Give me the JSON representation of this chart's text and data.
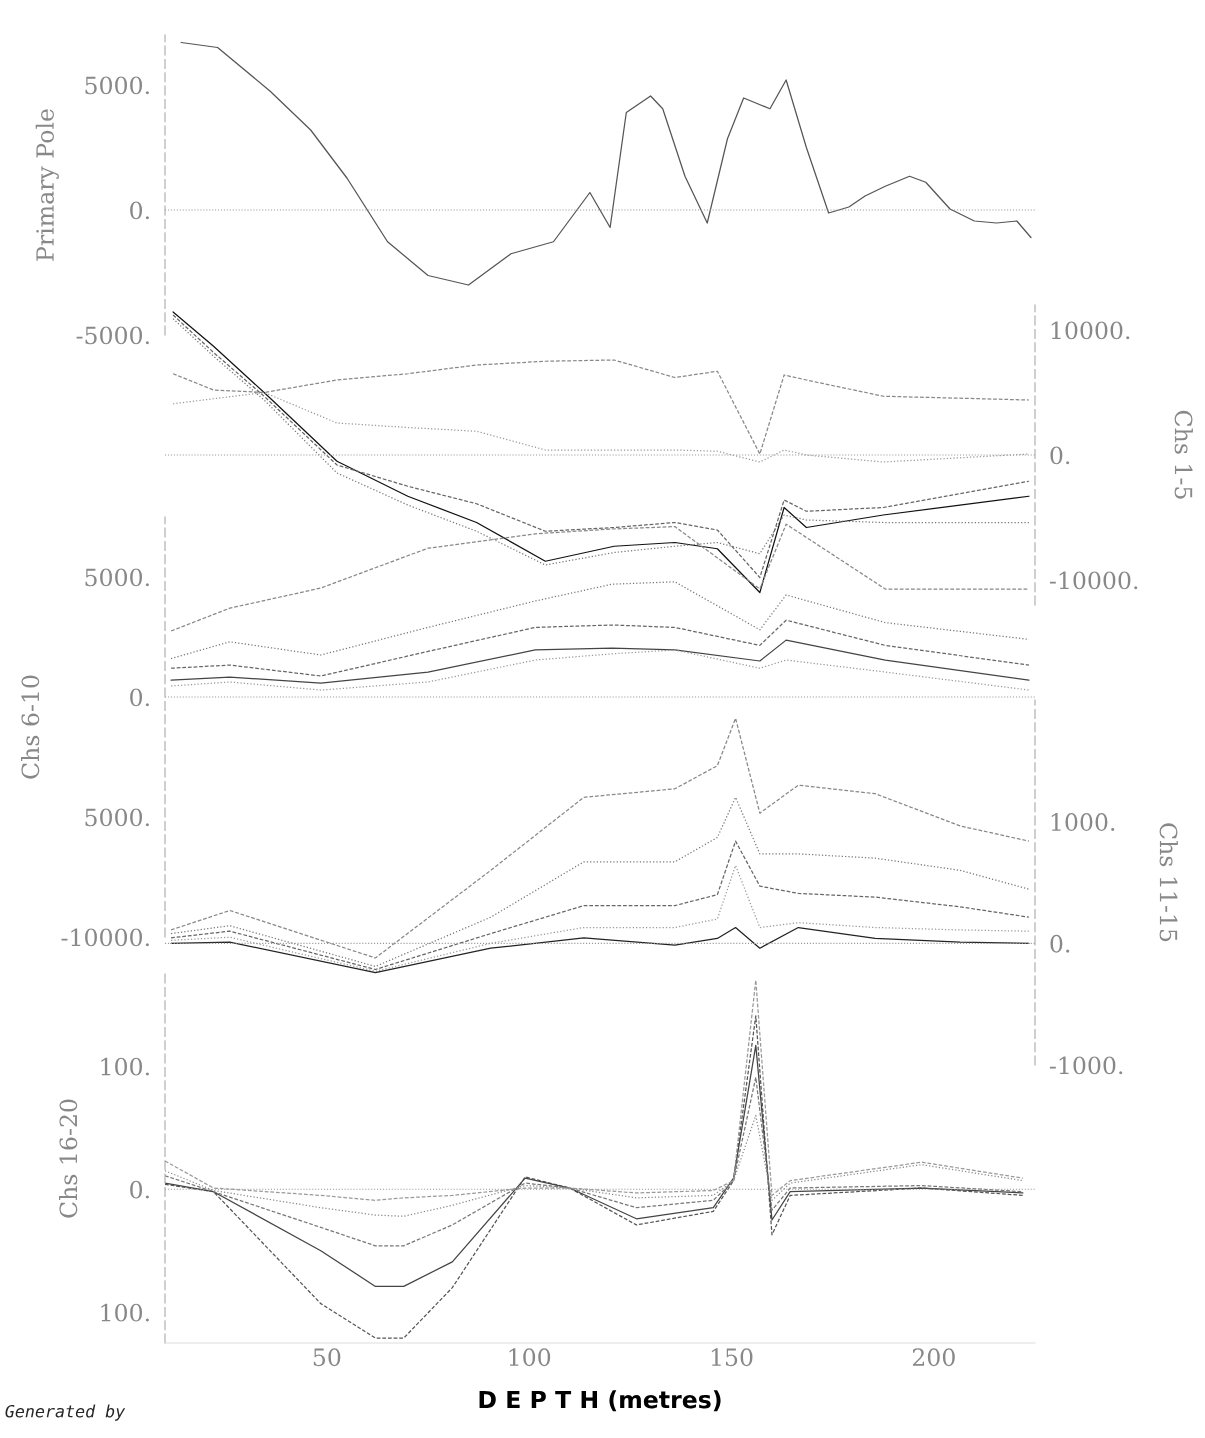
{
  "chart_data": [
    {
      "type": "line",
      "ylabel": "Primary Pole",
      "xlim": [
        10,
        225
      ],
      "ylim": [
        -5000,
        7000
      ],
      "yticks": [
        {
          "value": 5000,
          "label": "5000."
        },
        {
          "value": 0,
          "label": "0."
        },
        {
          "value": -5000,
          "label": "-5000."
        }
      ],
      "tick_labels": "y",
      "grid": false,
      "ref_lines": [
        {
          "axis": "y",
          "value": 0,
          "color": "#999999",
          "line_style": "dotted"
        }
      ],
      "x": [
        14,
        23,
        36,
        46,
        55,
        65,
        75,
        85,
        95.5,
        106,
        115,
        120,
        124,
        130,
        133,
        138.5,
        144,
        149,
        153,
        159.5,
        163.5,
        168.5,
        174,
        179,
        183,
        188,
        194,
        198,
        204,
        210,
        215.5,
        220.5,
        224
      ],
      "series": [
        {
          "color": "#555555",
          "line_style": "solid",
          "values": [
            6700,
            6500,
            4750,
            3200,
            1270,
            -1270,
            -2620,
            -3000,
            -1750,
            -1270,
            700,
            -700,
            3900,
            4560,
            4050,
            1350,
            -520,
            2850,
            4480,
            4050,
            5200,
            2500,
            -120,
            120,
            560,
            950,
            1350,
            1110,
            40,
            -440,
            -520,
            -440,
            -1100
          ]
        }
      ]
    },
    {
      "type": "line",
      "y2label": "Chs 1-5",
      "xlim": [
        10,
        225
      ],
      "y2lim": [
        -12000,
        12000
      ],
      "y2ticks": [
        {
          "value": 10000,
          "label": "10000."
        },
        {
          "value": 0,
          "label": "0."
        },
        {
          "value": -10000,
          "label": "-10000."
        }
      ],
      "tick_labels": "y",
      "grid": false,
      "ref_lines": [
        {
          "axis": "y2",
          "value": 0,
          "color": "#999999",
          "line_style": "dotted"
        }
      ],
      "x": [
        12,
        22,
        34.5,
        52.5,
        70,
        87,
        104,
        121,
        136,
        146.5,
        157,
        163,
        168.5,
        187.5,
        223.5
      ],
      "series": [
        {
          "axis": "y2",
          "color": "#111111",
          "line_style": "solid",
          "values": [
            11440,
            8700,
            5000,
            -500,
            -3300,
            -5400,
            -8500,
            -7300,
            -7000,
            -7500,
            -11000,
            -4200,
            -5800,
            -4800,
            -3300
          ]
        },
        {
          "axis": "y2",
          "color": "#888888",
          "line_style": "dashed",
          "values": [
            6500,
            5200,
            5000,
            6000,
            6500,
            7200,
            7500,
            7600,
            6200,
            6700,
            80,
            6400,
            6000,
            4700,
            4400
          ]
        },
        {
          "axis": "y2",
          "color": "#999999",
          "line_style": "dotted",
          "values": [
            4100,
            4500,
            5000,
            2560,
            2200,
            1900,
            400,
            400,
            400,
            300,
            -560,
            400,
            0,
            -560,
            80
          ]
        },
        {
          "axis": "y2",
          "color": "#666666",
          "line_style": "dashed",
          "values": [
            11200,
            8200,
            4700,
            -800,
            -2500,
            -3900,
            -6100,
            -5800,
            -5400,
            -6000,
            -9800,
            -3600,
            -4500,
            -4200,
            -2100
          ]
        },
        {
          "axis": "y2",
          "color": "#777777",
          "line_style": "dotted",
          "values": [
            10900,
            7900,
            4400,
            -1440,
            -4000,
            -6100,
            -8800,
            -7800,
            -7300,
            -7000,
            -7900,
            -4800,
            -5200,
            -5400,
            -5400
          ]
        }
      ]
    },
    {
      "type": "line",
      "ylabel": "Chs 6-10",
      "xlim": [
        10,
        225
      ],
      "ylim": [
        -10000,
        7500
      ],
      "yticks": [
        {
          "value": 5000,
          "label": "5000."
        },
        {
          "value": 0,
          "label": "0."
        },
        {
          "value": -5000,
          "label": "5000."
        },
        {
          "value": -10000,
          "label": "-10000."
        }
      ],
      "tick_labels": "y",
      "grid": false,
      "ref_lines": [
        {
          "axis": "y",
          "value": 0,
          "color": "#999999",
          "line_style": "dotted"
        }
      ],
      "x": [
        11.5,
        26,
        48.5,
        75,
        101.5,
        120.5,
        136,
        157,
        163.5,
        188,
        223.5
      ],
      "series": [
        {
          "color": "#888888",
          "line_style": "dashed",
          "values": [
            2750,
            3700,
            4540,
            6200,
            6800,
            7000,
            7100,
            4500,
            7200,
            4500,
            4500
          ]
        },
        {
          "color": "#777777",
          "line_style": "dotted",
          "values": [
            1600,
            2300,
            1750,
            2900,
            4000,
            4700,
            4800,
            2800,
            4250,
            3100,
            2400
          ]
        },
        {
          "color": "#666666",
          "line_style": "dashed",
          "values": [
            1200,
            1330,
            875,
            1900,
            2900,
            3000,
            2900,
            2150,
            3200,
            2150,
            1330
          ]
        },
        {
          "color": "#444444",
          "line_style": "solid",
          "values": [
            700,
            830,
            580,
            1040,
            1960,
            2040,
            1960,
            1500,
            2370,
            1540,
            700
          ]
        },
        {
          "color": "#999999",
          "line_style": "dotted",
          "values": [
            460,
            625,
            290,
            625,
            1540,
            1800,
            1960,
            1200,
            1540,
            1040,
            290
          ]
        }
      ]
    },
    {
      "type": "line",
      "y2label": "Chs 11-15",
      "xlim": [
        10,
        225
      ],
      "y2lim": [
        -1000,
        2000
      ],
      "y2ticks": [
        {
          "value": 1000,
          "label": "1000."
        },
        {
          "value": 0,
          "label": "0."
        },
        {
          "value": -1000,
          "label": "-1000."
        }
      ],
      "tick_labels": "y",
      "grid": false,
      "ref_lines": [
        {
          "axis": "y2",
          "value": 0,
          "color": "#999999",
          "line_style": "dotted"
        }
      ],
      "x": [
        11.5,
        26,
        62,
        90.5,
        113.5,
        136,
        146.5,
        151,
        157,
        166.5,
        185.5,
        206.5,
        223.5
      ],
      "series": [
        {
          "axis": "y2",
          "color": "#888888",
          "line_style": "dashed",
          "values": [
            110,
            270,
            -120,
            600,
            1200,
            1270,
            1460,
            1850,
            1070,
            1300,
            1230,
            965,
            840
          ]
        },
        {
          "axis": "y2",
          "color": "#777777",
          "line_style": "dotted",
          "values": [
            80,
            145,
            -190,
            215,
            670,
            670,
            870,
            1200,
            735,
            735,
            700,
            600,
            445
          ]
        },
        {
          "axis": "y2",
          "color": "#666666",
          "line_style": "dashed",
          "values": [
            45,
            100,
            -215,
            80,
            310,
            310,
            400,
            840,
            470,
            410,
            380,
            300,
            215
          ]
        },
        {
          "axis": "y2",
          "color": "#999999",
          "line_style": "dotted",
          "values": [
            25,
            50,
            -230,
            0,
            130,
            130,
            200,
            640,
            130,
            170,
            130,
            110,
            100
          ]
        },
        {
          "axis": "y2",
          "color": "#222222",
          "line_style": "solid",
          "values": [
            0,
            10,
            -240,
            -40,
            45,
            -15,
            40,
            130,
            -40,
            130,
            40,
            10,
            0
          ]
        }
      ]
    },
    {
      "type": "line",
      "ylabel": "Chs 16-20",
      "xlabel": "D E P T H (metres)",
      "xlim": [
        10,
        225
      ],
      "xticks": [
        50,
        100,
        150,
        200
      ],
      "ylim": [
        -125,
        175
      ],
      "yticks": [
        {
          "value": 100,
          "label": "100."
        },
        {
          "value": 0,
          "label": "0."
        },
        {
          "value": -100,
          "label": "100."
        }
      ],
      "grid": false,
      "ref_lines": [
        {
          "axis": "y",
          "value": 0,
          "color": "#999999",
          "line_style": "dotted"
        }
      ],
      "annotations": [
        "Generated by"
      ],
      "x": [
        10,
        22,
        48.5,
        62,
        69,
        81,
        99,
        110,
        126.5,
        145.5,
        150.5,
        156,
        160,
        164.5,
        197,
        222
      ],
      "series": [
        {
          "color": "#555555",
          "line_style": "dashed",
          "values": [
            4,
            -2,
            -93,
            -121,
            -121,
            -80,
            10,
            1,
            -29,
            -18,
            7,
            141,
            -37,
            -5,
            1,
            -5
          ]
        },
        {
          "color": "#444444",
          "line_style": "solid",
          "values": [
            5,
            -2,
            -50,
            -79,
            -79,
            -59,
            9,
            1,
            -24,
            -15,
            9,
            117,
            -25,
            -2,
            1,
            -3
          ]
        },
        {
          "color": "#777777",
          "line_style": "dashed",
          "values": [
            11,
            -2,
            -31,
            -46,
            -46,
            -29,
            5,
            1,
            -15,
            -9,
            7,
            91,
            -17,
            1,
            3,
            -2
          ]
        },
        {
          "color": "#888888",
          "line_style": "dotted",
          "values": [
            15,
            -1,
            -15,
            -21,
            -22,
            -13,
            3,
            1,
            -7,
            -5,
            7,
            60,
            -9,
            5,
            20,
            7
          ]
        },
        {
          "color": "#999999",
          "line_style": "dashed",
          "values": [
            23,
            1,
            -5,
            -9,
            -7,
            -5,
            1,
            1,
            -3,
            -1,
            7,
            170,
            -5,
            7,
            22,
            9
          ]
        }
      ]
    }
  ]
}
